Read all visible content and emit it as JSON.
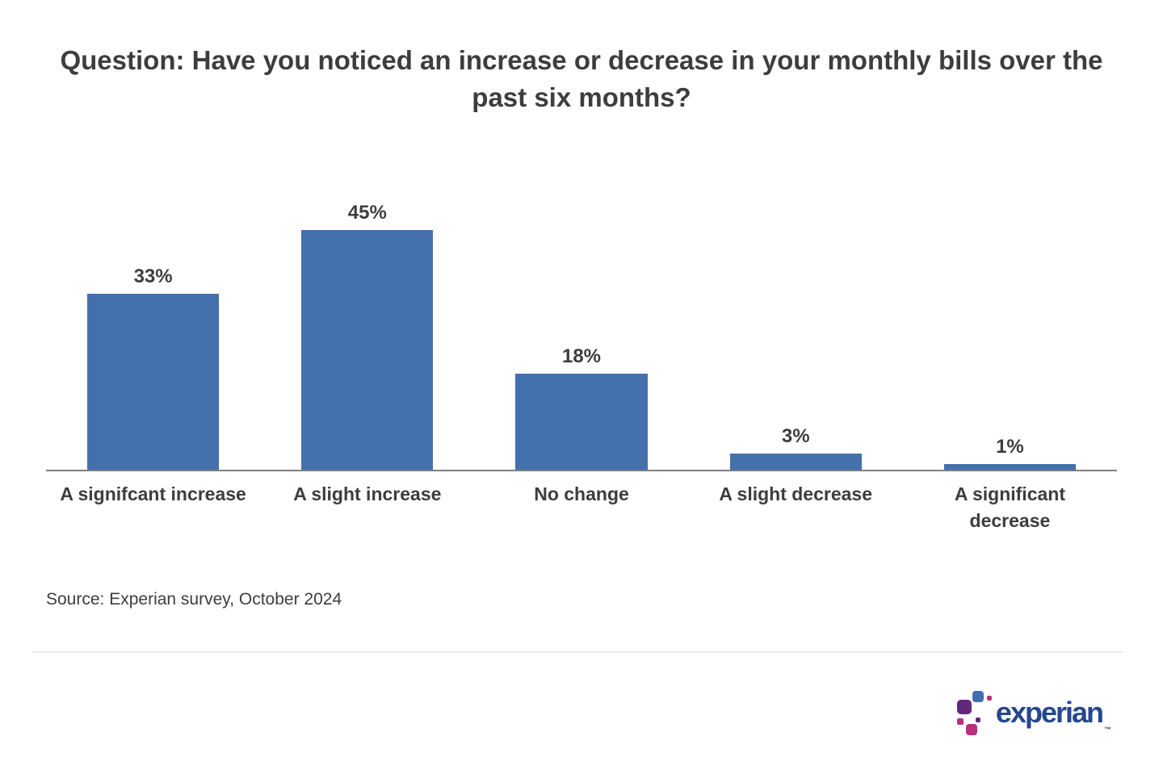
{
  "title": "Question: Have you noticed an increase or decrease in your monthly bills over the past six months?",
  "source": "Source: Experian survey, October 2024",
  "logo": {
    "text": "experian",
    "trademark": "™"
  },
  "colors": {
    "bar": "#4470ad",
    "axis": "#7f7f7f",
    "text": "#3d3d3d",
    "divider": "#e9e9e9",
    "logo_navy": "#26478D",
    "logo_blue": "#406EB3",
    "logo_purple": "#632678",
    "logo_magenta": "#BA2F7D"
  },
  "chart_data": {
    "type": "bar",
    "title": "Question: Have you noticed an increase or decrease in your monthly bills over the past six months?",
    "categories": [
      "A signifcant increase",
      "A slight increase",
      "No change",
      "A slight decrease",
      "A significant\ndecrease"
    ],
    "values": [
      33,
      45,
      18,
      3,
      1
    ],
    "value_labels": [
      "33%",
      "45%",
      "18%",
      "3%",
      "1%"
    ],
    "xlabel": "",
    "ylabel": "",
    "ylim": [
      0,
      50
    ],
    "grid": false,
    "legend": false,
    "bar_color": "#4470ad",
    "baseline_axis": true
  }
}
